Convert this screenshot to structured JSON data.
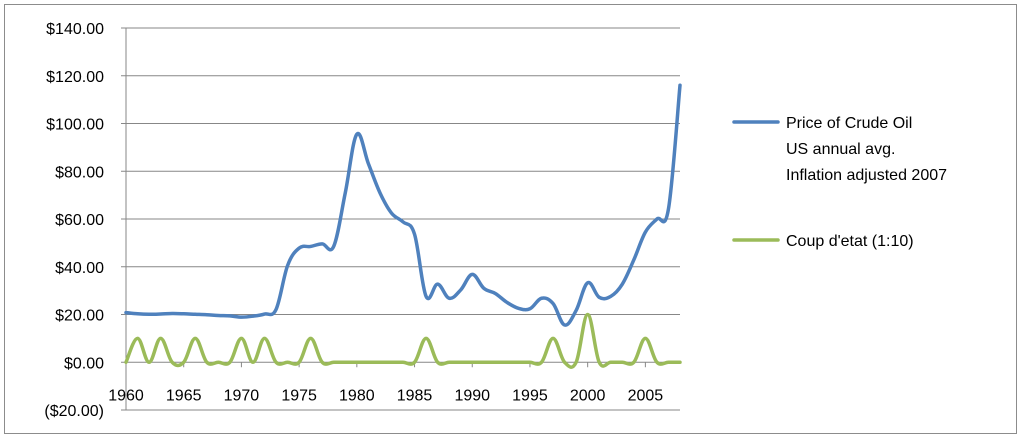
{
  "chart_data": {
    "type": "line",
    "title": "",
    "xlabel": "",
    "ylabel": "",
    "xlim": [
      1960,
      2008
    ],
    "ylim": [
      -20,
      140
    ],
    "grid": "horizontal",
    "legend_position": "right",
    "x_ticks": [
      "1960",
      "1965",
      "1970",
      "1975",
      "1980",
      "1985",
      "1990",
      "1995",
      "2000",
      "2005"
    ],
    "y_ticks": [
      {
        "value": 140,
        "label": "$140.00",
        "color": "#000000"
      },
      {
        "value": 120,
        "label": "$120.00",
        "color": "#000000"
      },
      {
        "value": 100,
        "label": "$100.00",
        "color": "#000000"
      },
      {
        "value": 80,
        "label": "$80.00",
        "color": "#000000"
      },
      {
        "value": 60,
        "label": "$60.00",
        "color": "#000000"
      },
      {
        "value": 40,
        "label": "$40.00",
        "color": "#000000"
      },
      {
        "value": 20,
        "label": "$20.00",
        "color": "#000000"
      },
      {
        "value": 0,
        "label": "$0.00",
        "color": "#000000"
      },
      {
        "value": -20,
        "label": "($20.00)",
        "color": "#ff0000"
      }
    ],
    "series": [
      {
        "name": "Price of Crude Oil US annual avg. Inflation adjusted 2007",
        "legend_lines": [
          "Price of Crude Oil",
          "US annual avg.",
          "Inflation adjusted 2007"
        ],
        "color": "#4f81bd",
        "x": [
          1960,
          1961,
          1962,
          1963,
          1964,
          1965,
          1966,
          1967,
          1968,
          1969,
          1970,
          1971,
          1972,
          1973,
          1974,
          1975,
          1976,
          1977,
          1978,
          1979,
          1980,
          1981,
          1982,
          1983,
          1984,
          1985,
          1986,
          1987,
          1988,
          1989,
          1990,
          1991,
          1992,
          1993,
          1994,
          1995,
          1996,
          1997,
          1998,
          1999,
          2000,
          2001,
          2002,
          2003,
          2004,
          2005,
          2006,
          2007,
          2008
        ],
        "values": [
          20.8,
          20.3,
          20.1,
          20.2,
          20.4,
          20.3,
          20.1,
          19.9,
          19.6,
          19.4,
          18.9,
          19.3,
          20.2,
          22.1,
          40.5,
          47.8,
          48.5,
          49.6,
          48.6,
          71.0,
          95.5,
          83.2,
          71.0,
          62.5,
          58.8,
          53.6,
          27.6,
          32.7,
          26.8,
          30.3,
          36.8,
          31.0,
          28.8,
          25.1,
          22.6,
          22.4,
          26.8,
          24.6,
          15.6,
          21.7,
          33.3,
          27.2,
          27.6,
          32.7,
          42.9,
          54.5,
          60.0,
          64.2,
          116.0
        ]
      },
      {
        "name": "Coup d'etat (1:10)",
        "legend_lines": [
          "Coup d'etat (1:10)"
        ],
        "color": "#9bbb59",
        "x": [
          1960,
          1961,
          1962,
          1963,
          1964,
          1965,
          1966,
          1967,
          1968,
          1969,
          1970,
          1971,
          1972,
          1973,
          1974,
          1975,
          1976,
          1977,
          1978,
          1979,
          1980,
          1981,
          1982,
          1983,
          1984,
          1985,
          1986,
          1987,
          1988,
          1989,
          1990,
          1991,
          1992,
          1993,
          1994,
          1995,
          1996,
          1997,
          1998,
          1999,
          2000,
          2001,
          2002,
          2003,
          2004,
          2005,
          2006,
          2007,
          2008
        ],
        "values": [
          0,
          10,
          0,
          10,
          0,
          0,
          10,
          0,
          0,
          0,
          10,
          0,
          10,
          0,
          0,
          0,
          10,
          0,
          0,
          0,
          0,
          0,
          0,
          0,
          0,
          0,
          10,
          0,
          0,
          0,
          0,
          0,
          0,
          0,
          0,
          0,
          0,
          10,
          0,
          0,
          20,
          0,
          0,
          0,
          0,
          10,
          0,
          0,
          0
        ]
      }
    ]
  }
}
